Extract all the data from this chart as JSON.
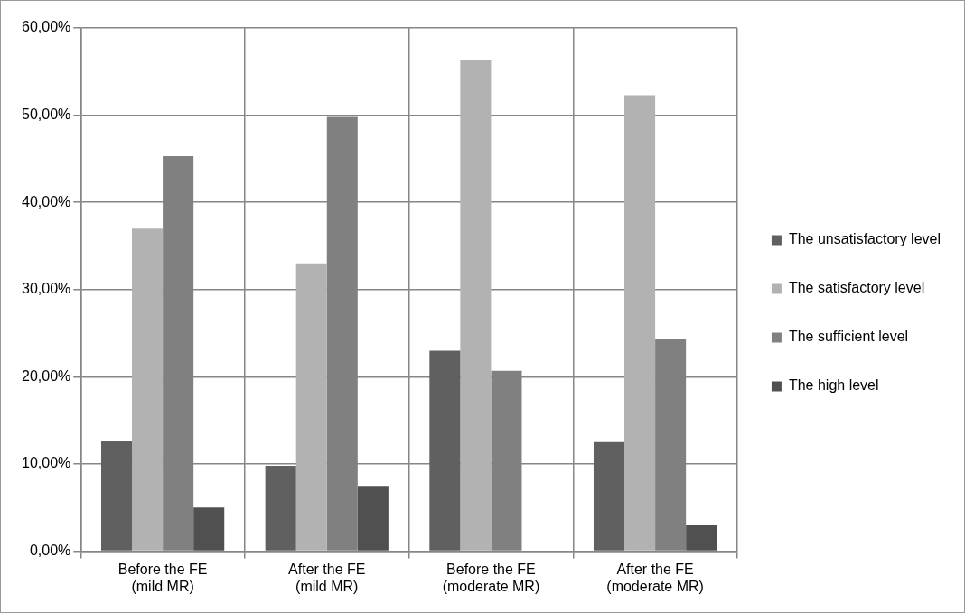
{
  "chart_data": {
    "type": "bar",
    "categories": [
      "Before the FE (mild MR)",
      "After the FE (mild MR)",
      "Before the FE (moderate MR)",
      "After the FE (moderate MR)"
    ],
    "series": [
      {
        "name": "The unsatisfactory level",
        "color": "#606060",
        "values": [
          12.7,
          9.8,
          23.0,
          12.5
        ]
      },
      {
        "name": "The satisfactory level",
        "color": "#b2b2b2",
        "values": [
          37.0,
          33.0,
          56.3,
          52.3
        ]
      },
      {
        "name": "The sufficient level",
        "color": "#808080",
        "values": [
          45.3,
          49.8,
          20.7,
          24.3
        ]
      },
      {
        "name": "The high level",
        "color": "#505050",
        "values": [
          5.0,
          7.5,
          0,
          3.0
        ]
      }
    ],
    "ylim": [
      0,
      60
    ],
    "yticks": [
      {
        "value": 0,
        "label": "0,00%"
      },
      {
        "value": 10,
        "label": "10,00%"
      },
      {
        "value": 20,
        "label": "20,00%"
      },
      {
        "value": 30,
        "label": "30,00%"
      },
      {
        "value": 40,
        "label": "40,00%"
      },
      {
        "value": 50,
        "label": "50,00%"
      },
      {
        "value": 60,
        "label": "60,00%"
      }
    ],
    "grid": true,
    "legend": "right"
  }
}
